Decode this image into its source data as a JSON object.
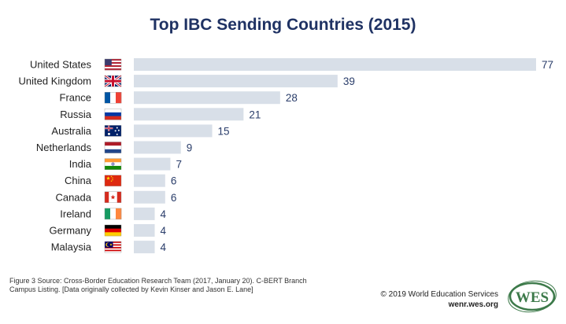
{
  "chart_data": {
    "type": "bar",
    "orientation": "horizontal",
    "title": "Top IBC Sending Countries (2015)",
    "categories": [
      "United States",
      "United Kingdom",
      "France",
      "Russia",
      "Australia",
      "Netherlands",
      "India",
      "China",
      "Canada",
      "Ireland",
      "Germany",
      "Malaysia"
    ],
    "values": [
      77,
      39,
      28,
      21,
      15,
      9,
      7,
      6,
      6,
      4,
      4,
      4
    ],
    "flags": [
      "us",
      "uk",
      "fr",
      "ru",
      "au",
      "nl",
      "in",
      "cn",
      "ca",
      "ie",
      "de",
      "my"
    ],
    "bar_color": "#d8dfe8",
    "value_color": "#2a3d6a",
    "xlim": [
      0,
      77
    ],
    "grid": false,
    "legend": "none"
  },
  "footer": {
    "source_line1": "Figure 3 Source: Cross-Border Education Research Team (2017, January 20). C-BERT Branch",
    "source_line2": "Campus Listing. [Data originally collected by Kevin Kinser and Jason E. Lane]",
    "copyright": "© 2019 World Education Services",
    "website": "wenr.wes.org",
    "logo_text": "WES"
  },
  "colors": {
    "title": "#1f3263",
    "logo_green": "#3d7a4a"
  }
}
